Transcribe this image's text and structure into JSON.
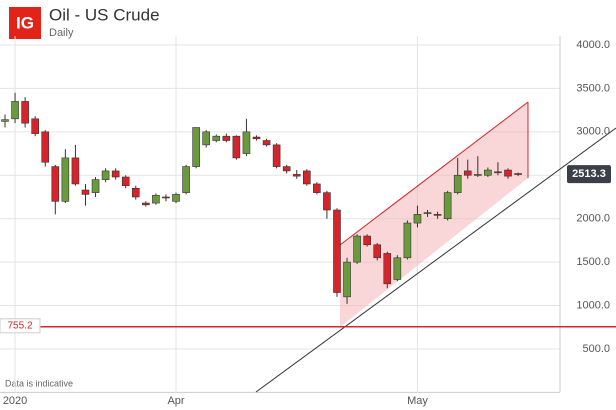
{
  "chart_data": {
    "type": "candlestick",
    "title": "Oil - US Crude",
    "subtitle": "Daily",
    "logo": "IG",
    "note": "Data is indicative",
    "categories": [
      null,
      "2020",
      null,
      null,
      null,
      null,
      null,
      null,
      null,
      null,
      null,
      null,
      null,
      null,
      null,
      null,
      null,
      "Apr",
      null,
      null,
      null,
      null,
      null,
      null,
      null,
      null,
      null,
      null,
      null,
      null,
      null,
      null,
      null,
      null,
      null,
      null,
      null,
      null,
      null,
      null,
      null,
      "May",
      null,
      null,
      null,
      null,
      null,
      null,
      null,
      null,
      null,
      null
    ],
    "open": [
      3120,
      3150,
      3350,
      3150,
      3000,
      2600,
      2200,
      2700,
      2330,
      2300,
      2450,
      2550,
      2480,
      2350,
      2180,
      2180,
      2250,
      2200,
      2300,
      2600,
      2850,
      2900,
      2950,
      2950,
      2750,
      2940,
      2900,
      2850,
      2600,
      2510,
      2550,
      2400,
      2300,
      2100,
      1100,
      1500,
      1800,
      1700,
      1600,
      1300,
      1550,
      1950,
      2060,
      2050,
      2000,
      2300,
      2550,
      2500,
      2500,
      2540,
      2560,
      2520
    ],
    "high": [
      3200,
      3450,
      3400,
      3180,
      3020,
      2620,
      2800,
      2850,
      2400,
      2480,
      2580,
      2580,
      2500,
      2380,
      2200,
      2290,
      2280,
      2300,
      2620,
      3050,
      3020,
      2970,
      2980,
      2960,
      3150,
      2960,
      2920,
      2870,
      2620,
      2560,
      2570,
      2420,
      2320,
      2120,
      1550,
      1820,
      1820,
      1720,
      1620,
      1580,
      1980,
      2150,
      2100,
      2080,
      2320,
      2700,
      2680,
      2720,
      2590,
      2650,
      2580,
      2530
    ],
    "low": [
      3050,
      3100,
      3050,
      2950,
      2600,
      2050,
      2180,
      2380,
      2150,
      2250,
      2420,
      2450,
      2350,
      2220,
      2140,
      2160,
      2200,
      2180,
      2280,
      2580,
      2820,
      2880,
      2880,
      2680,
      2720,
      2900,
      2830,
      2580,
      2520,
      2460,
      2380,
      2280,
      2000,
      1100,
      1020,
      1480,
      1680,
      1520,
      1200,
      1280,
      1530,
      1900,
      2020,
      2000,
      1980,
      2280,
      2460,
      2480,
      2480,
      2500,
      2460,
      2490
    ],
    "close": [
      3140,
      3350,
      3100,
      2980,
      2650,
      2200,
      2700,
      2400,
      2280,
      2450,
      2550,
      2480,
      2380,
      2250,
      2160,
      2270,
      2240,
      2280,
      2600,
      3050,
      3000,
      2950,
      2900,
      2700,
      3000,
      2920,
      2850,
      2600,
      2550,
      2490,
      2400,
      2300,
      2100,
      1150,
      1500,
      1800,
      1700,
      1550,
      1250,
      1550,
      1950,
      2050,
      2070,
      2040,
      2300,
      2500,
      2500,
      2510,
      2560,
      2530,
      2490,
      2513.3
    ],
    "up_color": "#6b9a3e",
    "down_color": "#d5242b",
    "ylim": [
      0,
      4100
    ],
    "yticks": [
      {
        "value": 500,
        "label": "500.0"
      },
      {
        "value": 1000,
        "label": "1000.0"
      },
      {
        "value": 1500,
        "label": "1500.0"
      },
      {
        "value": 2000,
        "label": "2000.0"
      },
      {
        "value": 2500,
        "label": "2500.0"
      },
      {
        "value": 3000,
        "label": "3000.0"
      },
      {
        "value": 3500,
        "label": "3500.0"
      },
      {
        "value": 4000,
        "label": "4000.0"
      }
    ],
    "grid": true,
    "reference_line": 755.2,
    "reference_color": "#d5242b",
    "last_price": 2513.3
  }
}
